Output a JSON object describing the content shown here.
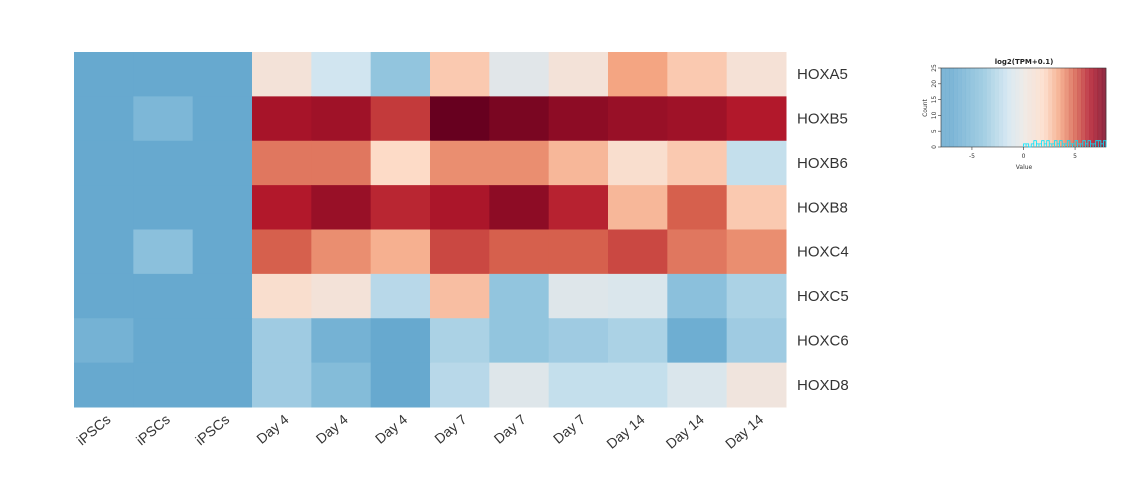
{
  "chart_data": {
    "type": "heatmap",
    "rows": [
      "HOXA5",
      "HOXB5",
      "HOXB6",
      "HOXB8",
      "HOXC4",
      "HOXC5",
      "HOXC6",
      "HOXD8"
    ],
    "columns": [
      "iPSCs",
      "iPSCs",
      "iPSCs",
      "Day 4",
      "Day 4",
      "Day 4",
      "Day 7",
      "Day 7",
      "Day 7",
      "Day 14",
      "Day 14",
      "Day 14"
    ],
    "values": [
      [
        -7.0,
        -7.0,
        -7.0,
        0.8,
        -1.5,
        -4.0,
        2.5,
        -0.6,
        0.8,
        3.5,
        2.5,
        1.0
      ],
      [
        -7.0,
        -5.5,
        -7.0,
        6.8,
        7.0,
        5.8,
        8.5,
        8.0,
        7.5,
        7.2,
        7.0,
        6.5
      ],
      [
        -7.0,
        -7.0,
        -7.0,
        4.5,
        4.5,
        2.0,
        4.0,
        4.0,
        3.0,
        1.5,
        2.5,
        -2.0
      ],
      [
        -7.0,
        -7.0,
        -7.0,
        6.5,
        7.2,
        6.2,
        6.7,
        7.5,
        6.3,
        3.0,
        5.0,
        2.5
      ],
      [
        -7.0,
        -4.5,
        -7.0,
        5.0,
        4.0,
        3.2,
        5.5,
        5.0,
        5.0,
        5.5,
        4.5,
        4.0
      ],
      [
        -7.0,
        -7.0,
        -7.0,
        1.5,
        0.8,
        -2.5,
        2.8,
        -4.0,
        -0.8,
        -1.0,
        -4.5,
        -3.0
      ],
      [
        -6.0,
        -7.0,
        -7.0,
        -3.5,
        -6.0,
        -7.0,
        -3.0,
        -4.0,
        -3.5,
        -3.0,
        -6.5,
        -3.5
      ],
      [
        -7.0,
        -7.0,
        -7.0,
        -3.5,
        -5.0,
        -7.0,
        -2.5,
        -0.8,
        -2.0,
        -2.0,
        -1.0,
        0.5
      ]
    ],
    "color_scale": {
      "palette": "RdBu (reversed)",
      "min": -7,
      "max": 8,
      "low_color": "#67a9cf",
      "mid_color": "#f7f7f7",
      "high_color": "#67001f"
    },
    "color_key": {
      "title": "log2(TPM+0.1)",
      "xlabel": "Value",
      "ylabel": "Count",
      "x_ticks": [
        "-5",
        "0",
        "5"
      ],
      "y_ticks": [
        "0",
        "5",
        "10",
        "15",
        "20",
        "25"
      ],
      "x_range": [
        -8,
        8
      ],
      "y_range": [
        0,
        25
      ],
      "histogram_color": "#00e5ff",
      "histogram_counts": [
        1,
        1,
        0,
        1,
        2,
        1,
        1,
        2,
        1,
        2,
        1,
        1,
        2,
        1,
        2,
        1,
        1,
        2,
        1,
        1,
        2,
        1,
        1,
        2,
        1,
        2,
        1,
        1,
        2,
        2,
        1,
        2
      ]
    }
  }
}
